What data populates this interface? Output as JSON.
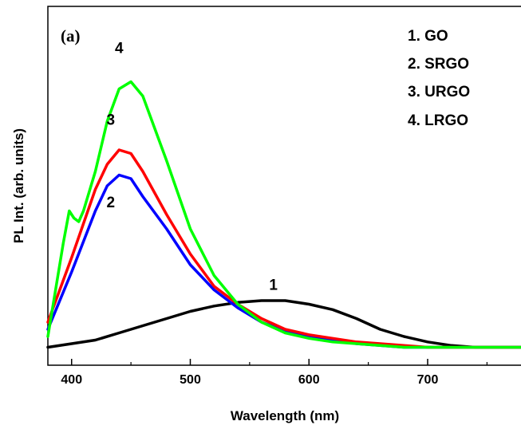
{
  "chart_data": {
    "type": "line",
    "panel_label": "(a)",
    "xlabel": "Wavelength (nm)",
    "ylabel": "PL Int. (arb. units)",
    "xlim": [
      380,
      780
    ],
    "ylim": [
      0,
      100
    ],
    "x_ticks": [
      400,
      500,
      600,
      700
    ],
    "x_tick_labels": [
      "400",
      "500",
      "600",
      "700"
    ],
    "legend": [
      "1. GO",
      "2. SRGO",
      "3. URGO",
      "4. LRGO"
    ],
    "legend_position": "top-right",
    "grid": false,
    "series": [
      {
        "label": "1",
        "color": "#000000",
        "points": [
          [
            380,
            5
          ],
          [
            400,
            6
          ],
          [
            420,
            7
          ],
          [
            440,
            9
          ],
          [
            460,
            11
          ],
          [
            480,
            13
          ],
          [
            500,
            15
          ],
          [
            520,
            16.5
          ],
          [
            540,
            17.5
          ],
          [
            560,
            18
          ],
          [
            580,
            18
          ],
          [
            600,
            17
          ],
          [
            620,
            15.5
          ],
          [
            640,
            13
          ],
          [
            660,
            10
          ],
          [
            680,
            8
          ],
          [
            700,
            6.5
          ],
          [
            720,
            5.5
          ],
          [
            740,
            5
          ],
          [
            760,
            5
          ],
          [
            780,
            5
          ]
        ]
      },
      {
        "label": "2",
        "color": "#0000ff",
        "points": [
          [
            380,
            10
          ],
          [
            400,
            26
          ],
          [
            420,
            43
          ],
          [
            430,
            50
          ],
          [
            440,
            53
          ],
          [
            450,
            52
          ],
          [
            460,
            47
          ],
          [
            480,
            38
          ],
          [
            500,
            28
          ],
          [
            520,
            21
          ],
          [
            540,
            16
          ],
          [
            560,
            12
          ],
          [
            580,
            9.5
          ],
          [
            600,
            8
          ],
          [
            620,
            7
          ],
          [
            640,
            6
          ],
          [
            660,
            5.5
          ],
          [
            680,
            5
          ],
          [
            700,
            5
          ],
          [
            740,
            5
          ],
          [
            780,
            5
          ]
        ]
      },
      {
        "label": "3",
        "color": "#ff0000",
        "points": [
          [
            380,
            12
          ],
          [
            400,
            30
          ],
          [
            420,
            49
          ],
          [
            430,
            56
          ],
          [
            440,
            60
          ],
          [
            450,
            59
          ],
          [
            460,
            54
          ],
          [
            480,
            42
          ],
          [
            500,
            31
          ],
          [
            520,
            22
          ],
          [
            540,
            17
          ],
          [
            560,
            13
          ],
          [
            580,
            10
          ],
          [
            600,
            8.5
          ],
          [
            620,
            7.5
          ],
          [
            640,
            6.5
          ],
          [
            660,
            6
          ],
          [
            680,
            5.5
          ],
          [
            700,
            5
          ],
          [
            740,
            5
          ],
          [
            780,
            5
          ]
        ]
      },
      {
        "label": "4",
        "color": "#00ff00",
        "points": [
          [
            380,
            8
          ],
          [
            393,
            34
          ],
          [
            398,
            43
          ],
          [
            402,
            41
          ],
          [
            406,
            40
          ],
          [
            410,
            43
          ],
          [
            420,
            54
          ],
          [
            430,
            68
          ],
          [
            440,
            77
          ],
          [
            450,
            79
          ],
          [
            460,
            75
          ],
          [
            480,
            57
          ],
          [
            500,
            38
          ],
          [
            520,
            25
          ],
          [
            540,
            17
          ],
          [
            560,
            12
          ],
          [
            580,
            9
          ],
          [
            600,
            7.5
          ],
          [
            620,
            6.5
          ],
          [
            640,
            6
          ],
          [
            660,
            5.5
          ],
          [
            680,
            5
          ],
          [
            700,
            5
          ],
          [
            740,
            5
          ],
          [
            780,
            5
          ]
        ]
      }
    ]
  }
}
